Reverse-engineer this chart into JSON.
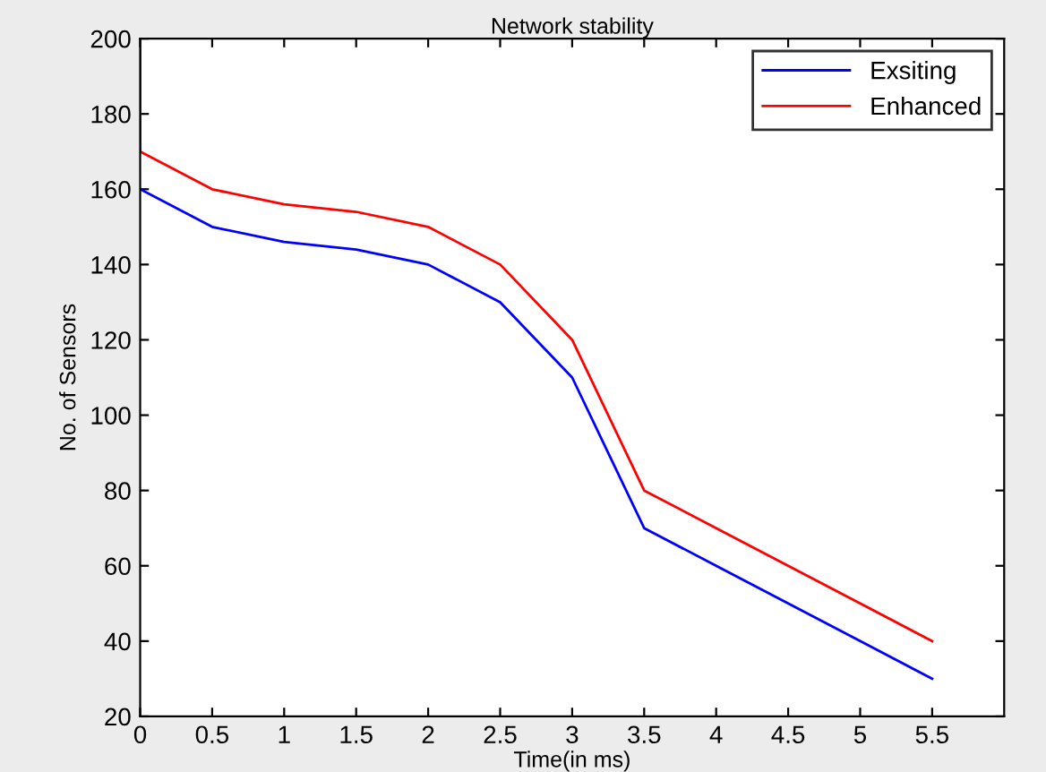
{
  "chart_data": {
    "type": "line",
    "title": "Network stability",
    "xlabel": "Time(in ms)",
    "ylabel": "No. of Sensors",
    "series": [
      {
        "name": "Exsiting",
        "color": "#0000ff",
        "x": [
          0,
          0.5,
          1,
          1.5,
          2,
          2.5,
          3,
          3.5,
          4,
          4.5,
          5,
          5.5
        ],
        "values": [
          160,
          150,
          146,
          144,
          140,
          130,
          110,
          70,
          60,
          50,
          40,
          30
        ]
      },
      {
        "name": "Enhanced",
        "color": "#ff0000",
        "x": [
          0,
          0,
          0.5,
          1,
          1.5,
          2,
          2.5,
          3,
          3.5,
          4,
          4.5,
          5,
          5.5
        ],
        "values": [
          200,
          170,
          160,
          156,
          154,
          150,
          140,
          120,
          80,
          70,
          60,
          50,
          40
        ]
      }
    ],
    "xlim": [
      0,
      6
    ],
    "xticks": [
      0,
      0.5,
      1,
      1.5,
      2,
      2.5,
      3,
      3.5,
      4,
      4.5,
      5,
      5.5
    ],
    "ylim": [
      20,
      200
    ],
    "yticks": [
      20,
      40,
      60,
      80,
      100,
      120,
      140,
      160,
      180,
      200
    ],
    "legend": "top right",
    "grid": false,
    "marker": "none",
    "line_style": "solid"
  }
}
